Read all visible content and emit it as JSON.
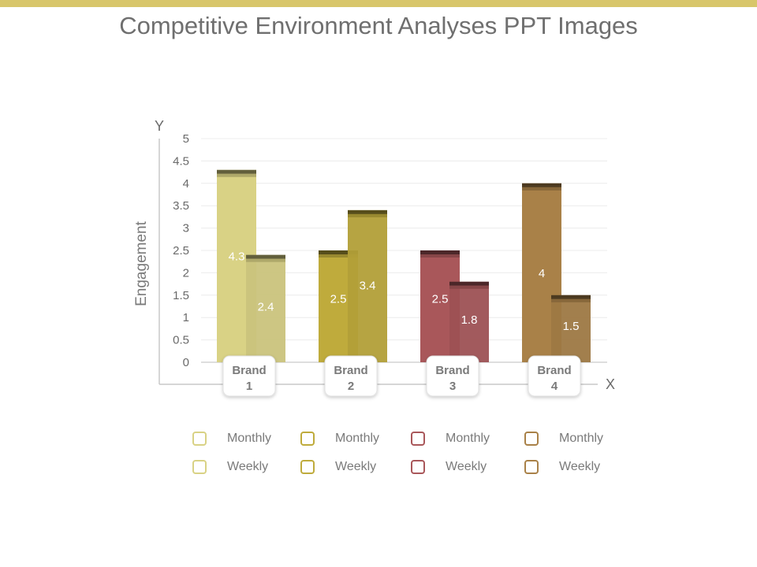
{
  "title": "Competitive Environment Analyses PPT Images",
  "colors": {
    "accent_bar": "#d8c66a",
    "brand1": "#d9d285",
    "brand2": "#bfab3c",
    "brand3": "#a9575a",
    "brand4": "#a98148"
  },
  "chart_data": {
    "type": "bar",
    "title": "",
    "xlabel": "X",
    "ylabel": "Engagement",
    "y_axis_letter": "Y",
    "ylim": [
      0,
      5
    ],
    "yticks": [
      "0",
      "0.5",
      "1",
      "1.5",
      "2",
      "2.5",
      "3",
      "3.5",
      "4",
      "4.5",
      "5"
    ],
    "grid": true,
    "categories": [
      {
        "line1": "Brand",
        "line2": "1"
      },
      {
        "line1": "Brand",
        "line2": "2"
      },
      {
        "line1": "Brand",
        "line2": "3"
      },
      {
        "line1": "Brand",
        "line2": "4"
      }
    ],
    "series": [
      {
        "name": "Monthly",
        "values": [
          4.3,
          2.5,
          2.5,
          4
        ]
      },
      {
        "name": "Weekly",
        "values": [
          2.4,
          3.4,
          1.8,
          1.5
        ]
      }
    ],
    "legend": {
      "placement": "bottom",
      "items": [
        {
          "label": "Monthly",
          "color": "#d9d285"
        },
        {
          "label": "Monthly",
          "color": "#bfab3c"
        },
        {
          "label": "Monthly",
          "color": "#a9575a"
        },
        {
          "label": "Monthly",
          "color": "#a98148"
        },
        {
          "label": "Weekly",
          "color": "#d9d285"
        },
        {
          "label": "Weekly",
          "color": "#bfab3c"
        },
        {
          "label": "Weekly",
          "color": "#a9575a"
        },
        {
          "label": "Weekly",
          "color": "#a98148"
        }
      ]
    }
  }
}
